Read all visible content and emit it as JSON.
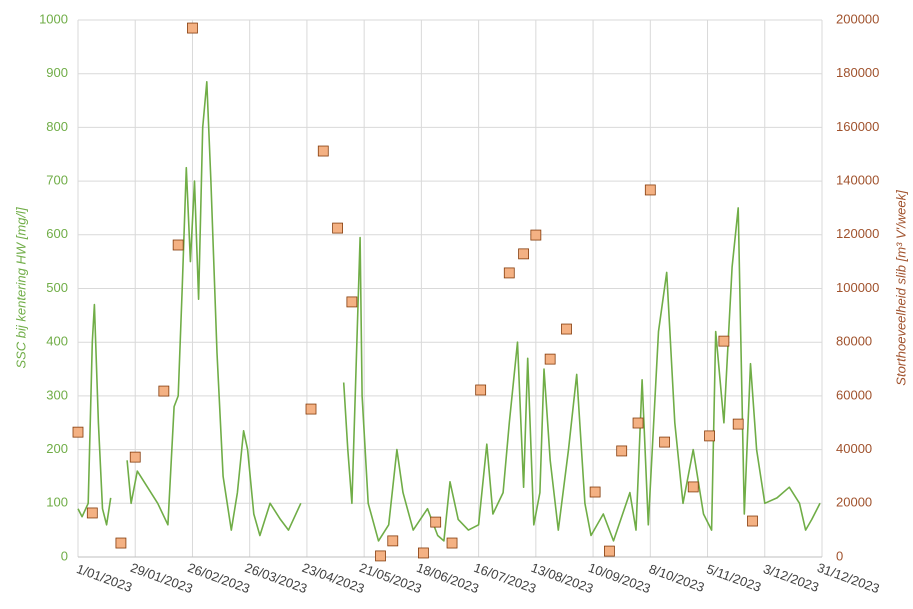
{
  "chart_data": {
    "type": "combo",
    "ylabel": "SSC bij kentering HW [mg/l]",
    "y2label": "Storthoeveelheid slib [m³ V'/week]",
    "xlim": [
      "2023-01-01",
      "2023-12-31"
    ],
    "xticks": [
      {
        "value": "2023-01-01",
        "label": "1/01/2023"
      },
      {
        "value": "2023-01-29",
        "label": "29/01/2023"
      },
      {
        "value": "2023-02-26",
        "label": "26/02/2023"
      },
      {
        "value": "2023-03-26",
        "label": "26/03/2023"
      },
      {
        "value": "2023-04-23",
        "label": "23/04/2023"
      },
      {
        "value": "2023-05-21",
        "label": "21/05/2023"
      },
      {
        "value": "2023-06-18",
        "label": "18/06/2023"
      },
      {
        "value": "2023-07-16",
        "label": "16/07/2023"
      },
      {
        "value": "2023-08-13",
        "label": "13/08/2023"
      },
      {
        "value": "2023-09-10",
        "label": "10/09/2023"
      },
      {
        "value": "2023-10-08",
        "label": "8/10/2023"
      },
      {
        "value": "2023-11-05",
        "label": "5/11/2023"
      },
      {
        "value": "2023-12-03",
        "label": "3/12/2023"
      },
      {
        "value": "2023-12-31",
        "label": "31/12/2023"
      }
    ],
    "ylim": [
      0,
      1000
    ],
    "yticks": [
      0,
      100,
      200,
      300,
      400,
      500,
      600,
      700,
      800,
      900,
      1000
    ],
    "y2lim": [
      0,
      200000
    ],
    "y2ticks": [
      0,
      20000,
      40000,
      60000,
      80000,
      100000,
      120000,
      140000,
      160000,
      180000,
      200000
    ],
    "grid": true,
    "series": [
      {
        "type": "line",
        "color": "#70ad47",
        "x": [
          "2023-01-01",
          "2023-01-03",
          "2023-01-06",
          "2023-01-08",
          "2023-01-09",
          "2023-01-11",
          "2023-01-13",
          "2023-01-15",
          "2023-01-17",
          "2023-01-20",
          "2023-01-25",
          "2023-01-27",
          "2023-01-30",
          "2023-02-04",
          "2023-02-09",
          "2023-02-14",
          "2023-02-17",
          "2023-02-19",
          "2023-02-21",
          "2023-02-23",
          "2023-02-25",
          "2023-02-27",
          "2023-03-01",
          "2023-03-03",
          "2023-03-05",
          "2023-03-07",
          "2023-03-10",
          "2023-03-13",
          "2023-03-17",
          "2023-03-20",
          "2023-03-23",
          "2023-03-25",
          "2023-03-28",
          "2023-03-31",
          "2023-04-05",
          "2023-04-10",
          "2023-04-14",
          "2023-04-20",
          "2023-04-30",
          "2023-05-11",
          "2023-05-13",
          "2023-05-15",
          "2023-05-19",
          "2023-05-20",
          "2023-05-23",
          "2023-05-28",
          "2023-06-02",
          "2023-06-06",
          "2023-06-09",
          "2023-06-14",
          "2023-06-21",
          "2023-06-26",
          "2023-06-29",
          "2023-07-02",
          "2023-07-06",
          "2023-07-11",
          "2023-07-16",
          "2023-07-20",
          "2023-07-23",
          "2023-07-28",
          "2023-07-31",
          "2023-08-04",
          "2023-08-07",
          "2023-08-09",
          "2023-08-12",
          "2023-08-15",
          "2023-08-17",
          "2023-08-20",
          "2023-08-24",
          "2023-08-29",
          "2023-09-02",
          "2023-09-06",
          "2023-09-09",
          "2023-09-15",
          "2023-09-20",
          "2023-09-28",
          "2023-10-01",
          "2023-10-04",
          "2023-10-07",
          "2023-10-12",
          "2023-10-16",
          "2023-10-20",
          "2023-10-24",
          "2023-10-29",
          "2023-11-03",
          "2023-11-07",
          "2023-11-09",
          "2023-11-13",
          "2023-11-17",
          "2023-11-20",
          "2023-11-23",
          "2023-11-26",
          "2023-11-29",
          "2023-12-03",
          "2023-12-09",
          "2023-12-15",
          "2023-12-20",
          "2023-12-23",
          "2023-12-26",
          "2023-12-30"
        ],
        "values": [
          90,
          75,
          100,
          400,
          470,
          250,
          90,
          60,
          110,
          null,
          180,
          100,
          160,
          130,
          100,
          60,
          280,
          300,
          500,
          725,
          550,
          700,
          480,
          800,
          885,
          700,
          380,
          150,
          50,
          120,
          235,
          200,
          80,
          40,
          100,
          70,
          50,
          100,
          null,
          325,
          200,
          100,
          595,
          300,
          100,
          30,
          60,
          200,
          120,
          50,
          90,
          40,
          30,
          140,
          70,
          50,
          60,
          210,
          80,
          120,
          250,
          400,
          130,
          370,
          60,
          120,
          350,
          180,
          50,
          200,
          340,
          100,
          40,
          80,
          30,
          120,
          50,
          330,
          60,
          420,
          530,
          250,
          100,
          200,
          80,
          50,
          420,
          250,
          540,
          650,
          80,
          360,
          200,
          100,
          110,
          130,
          100,
          50,
          70,
          100
        ]
      },
      {
        "type": "scatter",
        "axis": "y2",
        "color": "#f4b183",
        "x": [
          "2023-01-01",
          "2023-01-08",
          "2023-01-22",
          "2023-01-29",
          "2023-02-12",
          "2023-02-19",
          "2023-02-26",
          "2023-04-25",
          "2023-05-01",
          "2023-05-08",
          "2023-05-15",
          "2023-05-29",
          "2023-06-04",
          "2023-06-19",
          "2023-06-25",
          "2023-07-03",
          "2023-07-17",
          "2023-07-31",
          "2023-08-07",
          "2023-08-13",
          "2023-08-20",
          "2023-08-28",
          "2023-09-11",
          "2023-09-18",
          "2023-09-24",
          "2023-10-02",
          "2023-10-08",
          "2023-10-15",
          "2023-10-29",
          "2023-11-06",
          "2023-11-13",
          "2023-11-20",
          "2023-11-27"
        ],
        "values": [
          46500,
          16400,
          5200,
          37200,
          61800,
          116200,
          197000,
          55100,
          151200,
          122500,
          95000,
          400,
          6000,
          1500,
          13000,
          5200,
          62200,
          105800,
          112900,
          119900,
          73700,
          84900,
          24200,
          2200,
          39500,
          49900,
          136700,
          42800,
          26100,
          45100,
          80400,
          49500,
          13400
        ]
      }
    ]
  }
}
